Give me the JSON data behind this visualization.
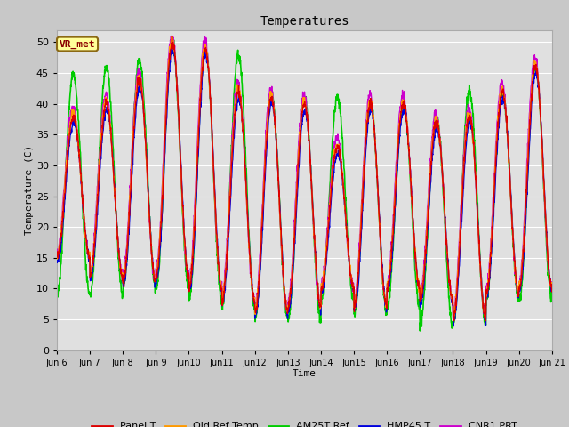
{
  "title": "Temperatures",
  "xlabel": "Time",
  "ylabel": "Temperature (C)",
  "ylim": [
    0,
    52
  ],
  "yticks": [
    0,
    5,
    10,
    15,
    20,
    25,
    30,
    35,
    40,
    45,
    50
  ],
  "fig_bg_color": "#c8c8c8",
  "plot_bg_color": "#e0e0e0",
  "grid_color": "#ffffff",
  "annotation_text": "VR_met",
  "annotation_bg": "#ffff99",
  "annotation_border": "#8b6914",
  "annotation_text_color": "#8b0000",
  "series": {
    "Panel T": {
      "color": "#dd0000",
      "lw": 1.0
    },
    "Old Ref Temp": {
      "color": "#ff9900",
      "lw": 1.0
    },
    "AM25T Ref": {
      "color": "#00cc00",
      "lw": 1.2
    },
    "HMP45 T": {
      "color": "#0000dd",
      "lw": 1.0
    },
    "CNR1 PRT": {
      "color": "#cc00cc",
      "lw": 1.0
    }
  },
  "xtick_labels": [
    "Jun 6",
    "Jun 7",
    "Jun 8",
    "Jun 9",
    "Jun10",
    "Jun11",
    "Jun12",
    "Jun13",
    "Jun14",
    "Jun15",
    "Jun16",
    "Jun17",
    "Jun18",
    "Jun19",
    "Jun20",
    "Jun 21"
  ],
  "mins": [
    15,
    12,
    11,
    12,
    10,
    8,
    6,
    7,
    10,
    7,
    10,
    8,
    5,
    9,
    10,
    10
  ],
  "maxs": [
    38,
    40,
    44,
    50,
    49,
    42,
    41,
    40,
    33,
    40,
    40,
    37,
    38,
    42,
    46,
    40
  ],
  "am25_mins": [
    9,
    9,
    10,
    10,
    8,
    7,
    5,
    5,
    8,
    6,
    7,
    4,
    4,
    8,
    8,
    10
  ],
  "am25_maxs": [
    45,
    46,
    47,
    50,
    49,
    48,
    42,
    41,
    41,
    40,
    40,
    38,
    42,
    42,
    46,
    40
  ]
}
